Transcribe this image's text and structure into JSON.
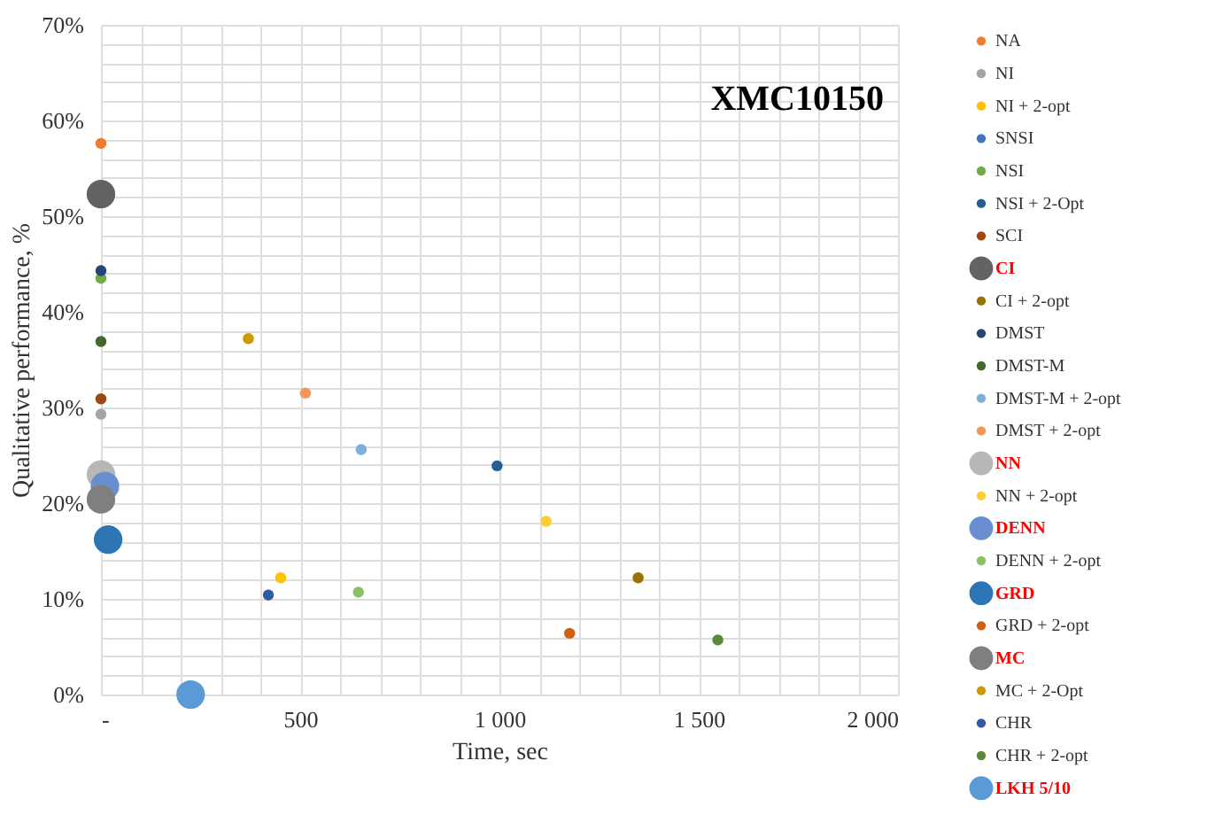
{
  "chart_data": {
    "type": "bubble",
    "title": "XMC10150",
    "xlabel": "Time, sec",
    "ylabel": "Qualitative performance, %",
    "xlim": [
      0,
      2000
    ],
    "ylim": [
      0,
      70
    ],
    "xticks": [
      {
        "value": 0,
        "label": "-"
      },
      {
        "value": 100,
        "label": null
      },
      {
        "value": 200,
        "label": null
      },
      {
        "value": 300,
        "label": null
      },
      {
        "value": 400,
        "label": null
      },
      {
        "value": 500,
        "label": "500"
      },
      {
        "value": 600,
        "label": null
      },
      {
        "value": 700,
        "label": null
      },
      {
        "value": 800,
        "label": null
      },
      {
        "value": 900,
        "label": null
      },
      {
        "value": 1000,
        "label": "1 000"
      },
      {
        "value": 1100,
        "label": null
      },
      {
        "value": 1200,
        "label": null
      },
      {
        "value": 1300,
        "label": null
      },
      {
        "value": 1400,
        "label": null
      },
      {
        "value": 1500,
        "label": "1 500"
      },
      {
        "value": 1600,
        "label": null
      },
      {
        "value": 1700,
        "label": null
      },
      {
        "value": 1800,
        "label": null
      },
      {
        "value": 1900,
        "label": null
      },
      {
        "value": 2000,
        "label": "2 000"
      }
    ],
    "yticks": [
      {
        "value": 0,
        "label": "0%"
      },
      {
        "value": 2,
        "label": null
      },
      {
        "value": 4,
        "label": null
      },
      {
        "value": 6,
        "label": null
      },
      {
        "value": 8,
        "label": null
      },
      {
        "value": 10,
        "label": "10%"
      },
      {
        "value": 12,
        "label": null
      },
      {
        "value": 14,
        "label": null
      },
      {
        "value": 16,
        "label": null
      },
      {
        "value": 18,
        "label": null
      },
      {
        "value": 20,
        "label": "20%"
      },
      {
        "value": 22,
        "label": null
      },
      {
        "value": 24,
        "label": null
      },
      {
        "value": 26,
        "label": null
      },
      {
        "value": 28,
        "label": null
      },
      {
        "value": 30,
        "label": "30%"
      },
      {
        "value": 32,
        "label": null
      },
      {
        "value": 34,
        "label": null
      },
      {
        "value": 36,
        "label": null
      },
      {
        "value": 38,
        "label": null
      },
      {
        "value": 40,
        "label": "40%"
      },
      {
        "value": 42,
        "label": null
      },
      {
        "value": 44,
        "label": null
      },
      {
        "value": 46,
        "label": null
      },
      {
        "value": 48,
        "label": null
      },
      {
        "value": 50,
        "label": "50%"
      },
      {
        "value": 52,
        "label": null
      },
      {
        "value": 54,
        "label": null
      },
      {
        "value": 56,
        "label": null
      },
      {
        "value": 58,
        "label": null
      },
      {
        "value": 60,
        "label": "60%"
      },
      {
        "value": 62,
        "label": null
      },
      {
        "value": 64,
        "label": null
      },
      {
        "value": 66,
        "label": null
      },
      {
        "value": 68,
        "label": null
      },
      {
        "value": 70,
        "label": "70%"
      }
    ],
    "grid": true,
    "legend": "right",
    "marker": "circle",
    "series": [
      {
        "name": "NA",
        "color": "#ed7d31",
        "x": [
          0
        ],
        "values": [
          57.6
        ],
        "sizes": [
          0.15
        ]
      },
      {
        "name": "NI",
        "color": "#a5a5a5",
        "x": [
          0
        ],
        "values": [
          29.3
        ],
        "sizes": [
          0.15
        ]
      },
      {
        "name": "NI + 2-opt",
        "color": "#ffc000",
        "x": [
          451
        ],
        "values": [
          12.2
        ],
        "sizes": [
          0.15
        ]
      },
      {
        "name": "SNSI",
        "color": "#4472c4",
        "x": [
          null
        ],
        "values": [
          null
        ],
        "sizes": [
          null
        ]
      },
      {
        "name": "NSI",
        "color": "#70ad47",
        "x": [
          0
        ],
        "values": [
          43.5
        ],
        "sizes": [
          0.15
        ]
      },
      {
        "name": "NSI + 2-Opt",
        "color": "#255e91",
        "x": [
          994
        ],
        "values": [
          23.9
        ],
        "sizes": [
          0.15
        ]
      },
      {
        "name": "SCI",
        "color": "#9e480e",
        "x": [
          0
        ],
        "values": [
          30.9
        ],
        "sizes": [
          0.15
        ]
      },
      {
        "name": "CI",
        "color": "#636363",
        "x": [
          0
        ],
        "values": [
          52.3
        ],
        "sizes": [
          1
        ]
      },
      {
        "name": "CI + 2-opt",
        "color": "#997300",
        "x": [
          1348
        ],
        "values": [
          12.2
        ],
        "sizes": [
          0.15
        ]
      },
      {
        "name": "DMST",
        "color": "#264478",
        "x": [
          0
        ],
        "values": [
          44.3
        ],
        "sizes": [
          0.15
        ]
      },
      {
        "name": "DMST-M",
        "color": "#43682b",
        "x": [
          0
        ],
        "values": [
          36.9
        ],
        "sizes": [
          0.15
        ]
      },
      {
        "name": "DMST-M + 2-opt",
        "color": "#7cafdd",
        "x": [
          653
        ],
        "values": [
          25.6
        ],
        "sizes": [
          0.15
        ]
      },
      {
        "name": "DMST + 2-opt",
        "color": "#f1975a",
        "x": [
          513
        ],
        "values": [
          31.5
        ],
        "sizes": [
          0.15
        ]
      },
      {
        "name": "NN",
        "color": "#b7b7b7",
        "x": [
          0
        ],
        "values": [
          23
        ],
        "sizes": [
          1
        ]
      },
      {
        "name": "NN + 2-opt",
        "color": "#ffcd33",
        "x": [
          1117
        ],
        "values": [
          18.1
        ],
        "sizes": [
          0.15
        ]
      },
      {
        "name": "DENN",
        "color": "#698ed0",
        "x": [
          10
        ],
        "values": [
          21.8
        ],
        "sizes": [
          1
        ]
      },
      {
        "name": "DENN + 2-opt",
        "color": "#8cc168",
        "x": [
          646
        ],
        "values": [
          10.7
        ],
        "sizes": [
          0.15
        ]
      },
      {
        "name": "GRD",
        "color": "#2e75b6",
        "x": [
          18
        ],
        "values": [
          16.2
        ],
        "sizes": [
          1
        ]
      },
      {
        "name": "GRD + 2-opt",
        "color": "#d26012",
        "x": [
          1176
        ],
        "values": [
          6.4
        ],
        "sizes": [
          0.15
        ]
      },
      {
        "name": "MC",
        "color": "#7f7f7f",
        "x": [
          0
        ],
        "values": [
          20.4
        ],
        "sizes": [
          1
        ]
      },
      {
        "name": "MC + 2-Opt",
        "color": "#cc9a00",
        "x": [
          370
        ],
        "values": [
          37.2
        ],
        "sizes": [
          0.15
        ]
      },
      {
        "name": "CHR",
        "color": "#335aa1",
        "x": [
          420
        ],
        "values": [
          10.4
        ],
        "sizes": [
          0.15
        ]
      },
      {
        "name": "CHR + 2-opt",
        "color": "#5a8a39",
        "x": [
          1548
        ],
        "values": [
          5.7
        ],
        "sizes": [
          0.15
        ]
      },
      {
        "name": "LKH 5/10",
        "color": "#5b9bd5",
        "x": [
          225
        ],
        "values": [
          0
        ],
        "sizes": [
          1
        ]
      }
    ]
  }
}
